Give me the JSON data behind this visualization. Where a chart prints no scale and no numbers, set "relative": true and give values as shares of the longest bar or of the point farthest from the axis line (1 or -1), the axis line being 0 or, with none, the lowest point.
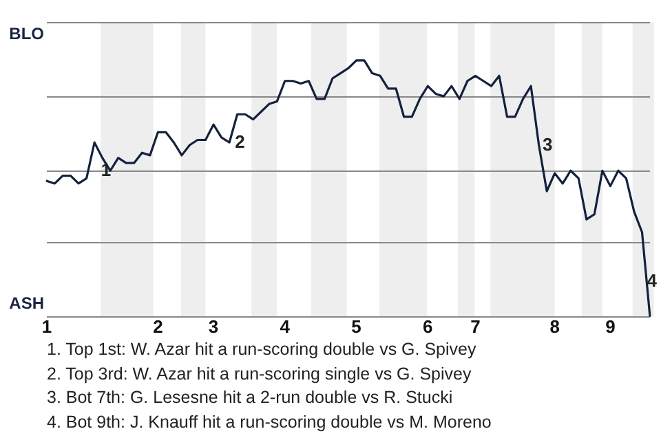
{
  "chart_data": {
    "type": "line",
    "categories": [
      "1",
      null,
      null,
      null,
      null,
      null,
      null,
      null,
      null,
      null,
      null,
      null,
      null,
      null,
      "2",
      null,
      null,
      null,
      null,
      null,
      null,
      "3",
      null,
      null,
      null,
      null,
      null,
      null,
      null,
      null,
      "4",
      null,
      null,
      null,
      null,
      null,
      null,
      null,
      null,
      "5",
      null,
      null,
      null,
      null,
      null,
      null,
      null,
      null,
      "6",
      null,
      null,
      null,
      null,
      null,
      "7",
      null,
      null,
      null,
      null,
      null,
      null,
      null,
      null,
      null,
      "8",
      null,
      null,
      null,
      null,
      null,
      null,
      "9",
      null,
      null,
      null,
      null,
      null
    ],
    "series": [
      {
        "color": "#14213d",
        "values": [
          0.53,
          0.52,
          0.55,
          0.55,
          0.52,
          0.54,
          0.68,
          0.62,
          0.57,
          0.62,
          0.6,
          0.6,
          0.64,
          0.63,
          0.72,
          0.72,
          0.68,
          0.63,
          0.67,
          0.69,
          0.69,
          0.75,
          0.7,
          0.68,
          0.79,
          0.79,
          0.77,
          0.8,
          0.83,
          0.84,
          0.92,
          0.92,
          0.91,
          0.92,
          0.85,
          0.85,
          0.93,
          0.95,
          0.97,
          1,
          1,
          0.95,
          0.94,
          0.89,
          0.89,
          0.78,
          0.78,
          0.85,
          0.9,
          0.87,
          0.86,
          0.9,
          0.85,
          0.92,
          0.94,
          0.92,
          0.9,
          0.94,
          0.78,
          0.78,
          0.85,
          0.9,
          0.67,
          0.49,
          0.56,
          0.52,
          0.57,
          0.54,
          0.38,
          0.4,
          0.57,
          0.51,
          0.57,
          0.54,
          0.41,
          0.33,
          0
        ]
      }
    ],
    "relative": true,
    "grid": false,
    "marker": "none",
    "ref_lines": [
      {
        "axis": "y",
        "value": 0,
        "label": "ASH",
        "color": "#888888"
      },
      {
        "axis": "y",
        "value": 0.29,
        "color": "#888888"
      },
      {
        "axis": "y",
        "value": 0.57,
        "color": "#888888"
      },
      {
        "axis": "y",
        "value": 0.86,
        "color": "#888888"
      },
      {
        "axis": "y",
        "value": 1.15,
        "label": "BLO",
        "color": "#888888"
      }
    ],
    "annotations": [
      "1",
      "2",
      "3",
      "4",
      "1. Top 1st: W. Azar hit a run-scoring double vs G. Spivey",
      "2. Top 3rd: W. Azar hit a run-scoring single vs G. Spivey",
      "3. Bot 7th: G. Lesesne hit a 2-run double vs R. Stucki",
      "4. Bot 9th: J. Knauff hit a run-scoring double vs M. Moreno"
    ]
  }
}
